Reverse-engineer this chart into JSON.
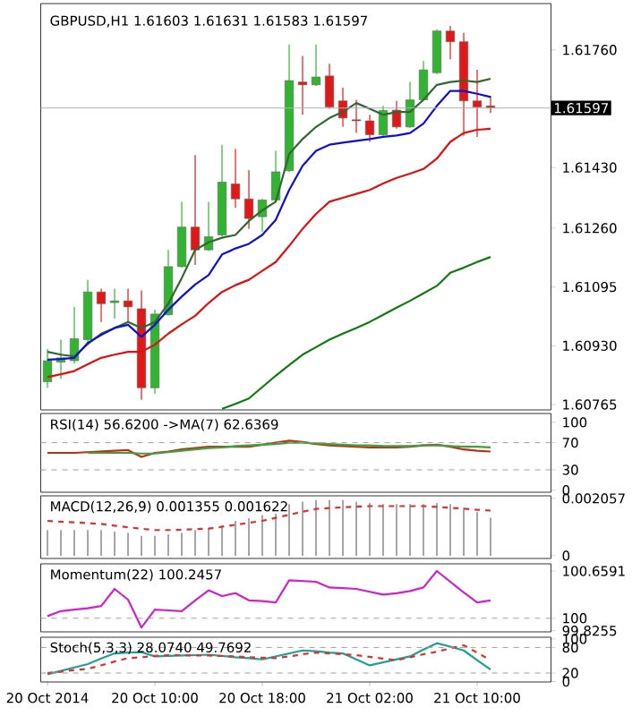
{
  "chart_data": [
    {
      "type": "candlestick",
      "title": "GBPUSD,H1 1.61603 1.61631 1.61583 1.61597",
      "tick_labels": "y",
      "ylim": [
        1.6075,
        1.6189
      ],
      "yticks": [
        {
          "value": 1.6176,
          "label": "1.61760"
        },
        {
          "value": 1.6143,
          "label": "1.61430"
        },
        {
          "value": 1.6126,
          "label": "1.61260"
        },
        1.61095,
        {
          "value": 1.6093,
          "label": "1.60930"
        },
        1.60765
      ],
      "ref_lines": [
        {
          "axis": "y",
          "value": 1.61597,
          "label": "1.61597",
          "color": "#b0b0b0"
        }
      ],
      "categories": [
        null,
        null,
        null,
        null,
        null,
        null,
        null,
        null,
        null,
        null,
        null,
        null,
        null,
        null,
        null,
        null,
        null,
        null,
        null,
        null,
        null,
        null,
        null,
        null,
        null,
        null,
        null,
        null,
        null,
        null,
        null,
        null,
        null,
        null,
        null,
        null,
        null,
        null
      ],
      "ohlc": [
        [
          1.60829,
          1.60921,
          1.60812,
          1.60888
        ],
        [
          1.60884,
          1.60947,
          1.60837,
          1.60896
        ],
        [
          1.60888,
          1.61039,
          1.60879,
          1.6095
        ],
        [
          1.60947,
          1.61115,
          1.60938,
          1.61081
        ],
        [
          1.61081,
          1.6109,
          1.60997,
          1.61048
        ],
        [
          1.61051,
          1.6109,
          1.61006,
          1.61056
        ],
        [
          1.61056,
          1.6109,
          1.60997,
          1.61039
        ],
        [
          1.61034,
          1.61085,
          1.60778,
          1.60812
        ],
        [
          1.60812,
          1.61031,
          1.60795,
          1.61019
        ],
        [
          1.61017,
          1.61199,
          1.61014,
          1.61152
        ],
        [
          1.61152,
          1.61334,
          1.61149,
          1.61263
        ],
        [
          1.61263,
          1.61465,
          1.61157,
          1.61199
        ],
        [
          1.61199,
          1.61334,
          1.61196,
          1.61236
        ],
        [
          1.61241,
          1.61494,
          1.61236,
          1.61389
        ],
        [
          1.61384,
          1.61482,
          1.61317,
          1.61342
        ],
        [
          1.61342,
          1.61423,
          1.61258,
          1.61287
        ],
        [
          1.61292,
          1.61342,
          1.6125,
          1.61339
        ],
        [
          1.61339,
          1.61477,
          1.61334,
          1.61418
        ],
        [
          1.61421,
          1.61775,
          1.61418,
          1.61674
        ],
        [
          1.6167,
          1.61743,
          1.61578,
          1.61662
        ],
        [
          1.61662,
          1.61775,
          1.61659,
          1.61684
        ],
        [
          1.61687,
          1.61721,
          1.61595,
          1.616
        ],
        [
          1.61617,
          1.61654,
          1.61544,
          1.61569
        ],
        [
          1.61564,
          1.6162,
          1.61527,
          1.61561
        ],
        [
          1.61561,
          1.61578,
          1.61502,
          1.61522
        ],
        [
          1.61522,
          1.61603,
          1.61519,
          1.6159
        ],
        [
          1.61591,
          1.61617,
          1.61539,
          1.61544
        ],
        [
          1.61544,
          1.6167,
          1.61541,
          1.6162
        ],
        [
          1.6162,
          1.61729,
          1.61617,
          1.61704
        ],
        [
          1.61696,
          1.61818,
          1.61692,
          1.61813
        ],
        [
          1.61813,
          1.61827,
          1.61734,
          1.61783
        ],
        [
          1.61783,
          1.61808,
          1.61519,
          1.61617
        ],
        [
          1.61617,
          1.61704,
          1.61516,
          1.616
        ],
        [
          1.61603,
          1.61631,
          1.61583,
          1.61597
        ],
        null,
        null,
        null,
        null
      ],
      "series": [
        {
          "type": "line",
          "color": "#306830",
          "values": [
            1.60913,
            1.60905,
            1.609,
            1.60935,
            1.60964,
            1.6098,
            1.60997,
            1.6098,
            1.60997,
            1.61048,
            1.6112,
            1.61199,
            1.6122,
            1.61233,
            1.61241,
            1.6128,
            1.6131,
            1.61334,
            1.61468,
            1.6151,
            1.61544,
            1.61569,
            1.61586,
            1.61611,
            1.61595,
            1.61578,
            1.61586,
            1.61586,
            1.6162,
            1.61662,
            1.6167,
            1.61674,
            1.6167,
            1.61679,
            null,
            null,
            null,
            null
          ]
        },
        {
          "type": "line",
          "color": "#1010d0",
          "values": [
            1.60891,
            1.60893,
            1.60896,
            1.60938,
            1.6096,
            1.6098,
            1.60989,
            1.60955,
            1.60989,
            1.61031,
            1.61068,
            1.61102,
            1.61128,
            1.61186,
            1.61203,
            1.61216,
            1.61241,
            1.61283,
            1.61367,
            1.61435,
            1.61477,
            1.61494,
            1.615,
            1.61505,
            1.6151,
            1.61516,
            1.6152,
            1.61527,
            1.61553,
            1.61603,
            1.61645,
            1.61645,
            1.61637,
            1.61628,
            null,
            null,
            null,
            null
          ]
        },
        {
          "type": "line",
          "color": "#e01010",
          "values": [
            1.60842,
            1.6085,
            1.60859,
            1.60878,
            1.60896,
            1.60905,
            1.60913,
            1.60913,
            1.60933,
            1.60964,
            1.6099,
            1.61014,
            1.6105,
            1.61081,
            1.611,
            1.61115,
            1.6114,
            1.61165,
            1.6121,
            1.61258,
            1.613,
            1.61334,
            1.61345,
            1.61356,
            1.61367,
            1.61385,
            1.61401,
            1.61413,
            1.61426,
            1.61455,
            1.61502,
            1.61527,
            1.61536,
            1.61539,
            null,
            null,
            null,
            null
          ]
        },
        {
          "type": "line",
          "color": "#107a10",
          "values": [
            null,
            null,
            null,
            null,
            null,
            null,
            null,
            null,
            null,
            null,
            null,
            null,
            null,
            1.60753,
            1.60767,
            1.60782,
            1.60814,
            1.60846,
            1.60876,
            1.60905,
            1.60926,
            1.60947,
            1.60964,
            1.6098,
            1.60997,
            1.61017,
            1.61037,
            1.61056,
            1.61077,
            1.61098,
            1.61135,
            1.61149,
            1.61165,
            1.61179,
            null,
            null,
            null,
            null
          ]
        }
      ]
    },
    {
      "type": "line",
      "title": "RSI(14) 56.6200  ->MA(7) 62.6369",
      "tick_labels": "y",
      "ylim": [
        -3,
        113
      ],
      "yticks": [
        100,
        70,
        30,
        0
      ],
      "categories": [
        null,
        null,
        null,
        null,
        null,
        null,
        null,
        null,
        null,
        null,
        null,
        null,
        null,
        null,
        null,
        null,
        null,
        null,
        null,
        null,
        null,
        null,
        null,
        null,
        null,
        null,
        null,
        null,
        null,
        null,
        null,
        null,
        null,
        null,
        null,
        null,
        null,
        null
      ],
      "ref_lines": [
        {
          "axis": "y",
          "value": 70,
          "color": "#a0a0a0",
          "line_style": "dashed"
        },
        {
          "axis": "y",
          "value": 30,
          "color": "#a0a0a0",
          "line_style": "dashed"
        }
      ],
      "series": [
        {
          "color": "#c03010",
          "values": [
            55,
            55,
            55,
            56,
            57,
            58,
            59,
            49,
            55,
            57,
            60,
            62,
            64,
            64,
            64,
            64,
            67,
            70,
            73,
            71,
            68,
            66,
            65,
            64,
            63,
            63,
            63,
            64,
            66,
            67,
            64,
            60,
            58,
            57,
            null,
            null,
            null,
            null
          ]
        },
        {
          "color": "#40a040",
          "values": [
            null,
            null,
            null,
            55,
            55,
            55,
            55,
            54,
            54,
            56,
            58,
            60,
            62,
            63,
            65,
            66,
            67,
            68,
            70,
            70,
            69,
            68,
            67,
            66,
            66,
            65,
            65,
            65,
            66,
            66,
            65,
            64,
            64,
            63,
            null,
            null,
            null,
            null
          ]
        }
      ]
    },
    {
      "type": "bar",
      "title": "MACD(12,26,9) 0.001355 0.001622",
      "tick_labels": "y",
      "ylim": [
        -0.0001,
        0.00215
      ],
      "yticks": [
        0.002057,
        0
      ],
      "categories": [
        null,
        null,
        null,
        null,
        null,
        null,
        null,
        null,
        null,
        null,
        null,
        null,
        null,
        null,
        null,
        null,
        null,
        null,
        null,
        null,
        null,
        null,
        null,
        null,
        null,
        null,
        null,
        null,
        null,
        null,
        null,
        null,
        null,
        null,
        null,
        null,
        null,
        null
      ],
      "series": [
        {
          "type": "bar",
          "color": "#909090",
          "values": [
            0.00092,
            0.00092,
            0.00092,
            0.00092,
            0.00092,
            0.00086,
            0.00082,
            0.00071,
            0.00071,
            0.00077,
            0.00082,
            0.00092,
            0.00099,
            0.00108,
            0.00125,
            0.00135,
            0.00146,
            0.00151,
            0.00185,
            0.00194,
            0.002,
            0.002,
            0.002,
            0.00194,
            0.00189,
            0.00185,
            0.00185,
            0.00185,
            0.00185,
            0.00189,
            0.00185,
            0.00172,
            0.00157,
            0.00136,
            null,
            null,
            null,
            null
          ]
        },
        {
          "type": "line",
          "color": "#e03030",
          "line_style": "dashed",
          "values": [
            0.00125,
            0.00122,
            0.0012,
            0.00117,
            0.00114,
            0.00108,
            0.00102,
            0.00097,
            0.00092,
            0.00092,
            0.00093,
            0.00095,
            0.00097,
            0.00104,
            0.00111,
            0.00118,
            0.00125,
            0.00136,
            0.00147,
            0.00158,
            0.00168,
            0.00171,
            0.00174,
            0.00176,
            0.00178,
            0.00178,
            0.00178,
            0.00178,
            0.00178,
            0.00175,
            0.00172,
            0.00169,
            0.00165,
            0.00162,
            null,
            null,
            null,
            null
          ]
        }
      ]
    },
    {
      "type": "line",
      "title": "Momentum(22) 100.2457",
      "tick_labels": "y",
      "ylim": [
        99.81,
        100.76
      ],
      "yticks": [
        100.6591,
        100,
        99.8255
      ],
      "categories": [
        null,
        null,
        null,
        null,
        null,
        null,
        null,
        null,
        null,
        null,
        null,
        null,
        null,
        null,
        null,
        null,
        null,
        null,
        null,
        null,
        null,
        null,
        null,
        null,
        null,
        null,
        null,
        null,
        null,
        null,
        null,
        null,
        null,
        null,
        null,
        null,
        null,
        null
      ],
      "ref_lines": [
        {
          "axis": "y",
          "value": 100,
          "color": "#a0a0a0",
          "line_style": "dashed"
        }
      ],
      "series": [
        {
          "color": "#d020d0",
          "values": [
            100.03,
            100.1,
            100.12,
            100.14,
            100.17,
            100.41,
            100.26,
            99.87,
            100.12,
            100.11,
            100.1,
            100.25,
            100.39,
            100.31,
            100.35,
            100.25,
            100.24,
            100.22,
            100.53,
            100.52,
            100.51,
            100.43,
            100.42,
            100.41,
            100.37,
            100.33,
            100.35,
            100.38,
            100.43,
            100.66,
            100.51,
            100.36,
            100.22,
            100.25,
            null,
            null,
            null,
            null
          ]
        }
      ]
    },
    {
      "type": "line",
      "title": "Stoch(5,3,3) 28.0740 49.7692",
      "ylim": [
        -1,
        104
      ],
      "yticks": [
        100,
        80,
        20,
        0
      ],
      "categories": [
        "20 Oct 2014",
        null,
        null,
        null,
        null,
        null,
        null,
        null,
        "20 Oct 10:00",
        null,
        null,
        null,
        null,
        null,
        null,
        null,
        "20 Oct 18:00",
        null,
        null,
        null,
        null,
        null,
        null,
        null,
        "21 Oct 02:00",
        null,
        null,
        null,
        null,
        null,
        null,
        null,
        "21 Oct 10:00",
        null,
        null,
        null,
        null,
        null
      ],
      "ref_lines": [
        {
          "axis": "y",
          "value": 80,
          "color": "#a0a0a0",
          "line_style": "dashed"
        },
        {
          "axis": "y",
          "value": 20,
          "color": "#a0a0a0",
          "line_style": "dashed"
        }
      ],
      "series": [
        {
          "color": "#20a090",
          "values": [
            17,
            25,
            33,
            41,
            54,
            66,
            68,
            69,
            59,
            60,
            61,
            62,
            63,
            60,
            57,
            55,
            52,
            59,
            66,
            73,
            71,
            68,
            66,
            52,
            38,
            45,
            52,
            59,
            75,
            90,
            82,
            73,
            50,
            28,
            null,
            null,
            null,
            null
          ]
        },
        {
          "color": "#e03030",
          "line_style": "dashed",
          "values": [
            20,
            23,
            27,
            30,
            38,
            47,
            55,
            57,
            60,
            62,
            62,
            61,
            61,
            60,
            59,
            57,
            56,
            55,
            59,
            64,
            68,
            66,
            64,
            62,
            58,
            54,
            50,
            57,
            64,
            70,
            78,
            85,
            68,
            50,
            null,
            null,
            null,
            null
          ]
        }
      ]
    }
  ]
}
